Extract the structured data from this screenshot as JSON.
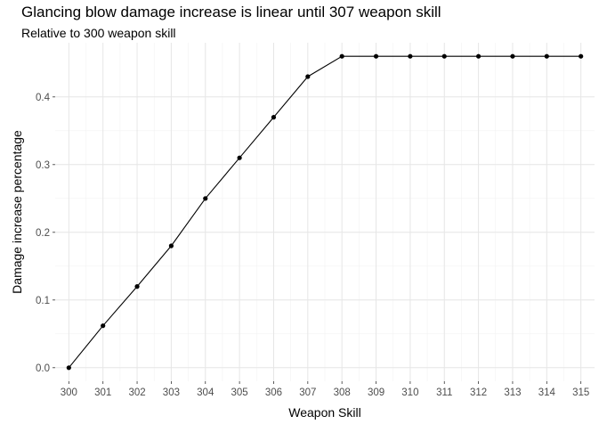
{
  "chart_data": {
    "type": "line",
    "title": "Glancing blow damage increase is linear until 307 weapon skill",
    "subtitle": "Relative to 300 weapon skill",
    "xlabel": "Weapon Skill",
    "ylabel": "Damage increase percentage",
    "x": [
      300,
      301,
      302,
      303,
      304,
      305,
      306,
      307,
      308,
      309,
      310,
      311,
      312,
      313,
      314,
      315
    ],
    "y": [
      0.0,
      0.062,
      0.12,
      0.18,
      0.25,
      0.31,
      0.37,
      0.43,
      0.46,
      0.46,
      0.46,
      0.46,
      0.46,
      0.46,
      0.46,
      0.46
    ],
    "xlim": [
      299.6,
      315.4
    ],
    "ylim": [
      -0.02,
      0.48
    ],
    "xticks": [
      "300",
      "301",
      "302",
      "303",
      "304",
      "305",
      "306",
      "307",
      "308",
      "309",
      "310",
      "311",
      "312",
      "313",
      "314",
      "315"
    ],
    "yticks": [
      "0.0",
      "0.1",
      "0.2",
      "0.3",
      "0.4"
    ],
    "ytick_values": [
      0.0,
      0.1,
      0.2,
      0.3,
      0.4
    ],
    "grid": true,
    "colors": {
      "line": "#000000",
      "points": "#000000",
      "grid_major": "#e6e6e6",
      "grid_minor": "#f2f2f2",
      "tick_label": "#4d4d4d"
    }
  }
}
